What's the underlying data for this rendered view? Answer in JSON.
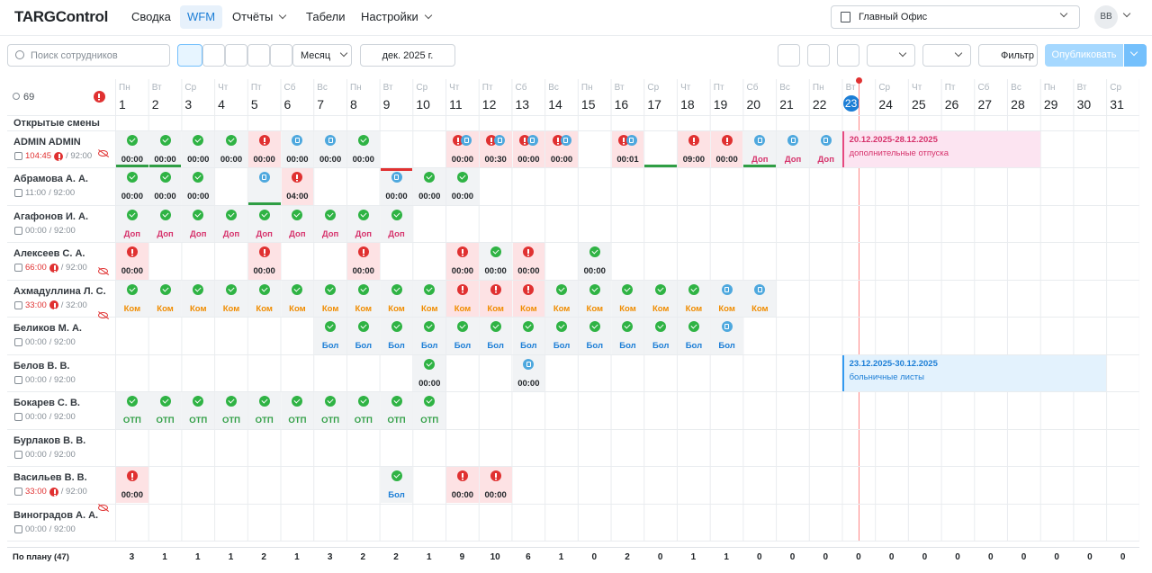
{
  "nav": {
    "logo": "TARGControl",
    "items": [
      "Сводка",
      "WFM",
      "Отчёты",
      "Табели",
      "Настройки"
    ],
    "active": 1,
    "dropdowns": [
      2,
      4
    ],
    "office": "Главный Офис",
    "avatar": "ВВ"
  },
  "toolbar": {
    "search": "Поиск сотрудников",
    "view": "Месяц",
    "period": "дек. 2025 г.",
    "filter": "Фильтр",
    "publish": "Опубликовать"
  },
  "grid": {
    "employee_count": "69",
    "open_shifts": "Открытые смены",
    "today": 23,
    "days": [
      1,
      2,
      3,
      4,
      5,
      6,
      7,
      8,
      9,
      10,
      11,
      12,
      13,
      14,
      15,
      16,
      17,
      18,
      19,
      20,
      21,
      22,
      23,
      24,
      25,
      26,
      27,
      28,
      29,
      30,
      31
    ],
    "weekdays": [
      "Пн",
      "Вт",
      "Ср",
      "Чт",
      "Пт",
      "Сб",
      "Вс",
      "Пн",
      "Вт",
      "Ср",
      "Чт",
      "Пт",
      "Сб",
      "Вс",
      "Пн",
      "Вт",
      "Ср",
      "Чт",
      "Пт",
      "Сб",
      "Вс",
      "Пн",
      "Вт",
      "Ср",
      "Чт",
      "Пт",
      "Сб",
      "Вс",
      "Пн",
      "Вт",
      "Ср"
    ],
    "employees": [
      {
        "name": "ADMIN ADMIN",
        "hours": "104:45",
        "plan": "/ 92:00",
        "over": true,
        "hidden": true,
        "cells": {
          "1": {
            "icon": "ok",
            "text": "00:00",
            "kind": "time",
            "bar": "green"
          },
          "2": {
            "icon": "ok",
            "text": "00:00",
            "kind": "time",
            "bar": "green"
          },
          "3": {
            "icon": "ok",
            "text": "00:00",
            "kind": "time"
          },
          "4": {
            "icon": "ok",
            "text": "00:00",
            "kind": "time"
          },
          "5": {
            "icon": "alert",
            "text": "00:00",
            "kind": "time"
          },
          "6": {
            "icon": "wait",
            "text": "00:00",
            "kind": "time"
          },
          "7": {
            "icon": "wait",
            "text": "00:00",
            "kind": "time"
          },
          "8": {
            "icon": "ok",
            "text": "00:00",
            "kind": "time"
          },
          "11": {
            "icon": "alert-wait",
            "text": "00:00",
            "kind": "time"
          },
          "12": {
            "icon": "alert-wait",
            "text": "00:30",
            "kind": "time"
          },
          "13": {
            "icon": "alert-wait",
            "text": "00:00",
            "kind": "time"
          },
          "14": {
            "icon": "alert-wait",
            "text": "00:00",
            "kind": "time"
          },
          "16": {
            "icon": "alert-wait",
            "text": "00:01",
            "kind": "time"
          },
          "17": {
            "bar": "green"
          },
          "18": {
            "icon": "alert",
            "text": "09:00",
            "kind": "time"
          },
          "19": {
            "icon": "alert",
            "text": "00:00",
            "kind": "time"
          },
          "20": {
            "icon": "wait",
            "text": "Доп",
            "kind": "dop",
            "bar": "green"
          },
          "21": {
            "icon": "wait",
            "text": "Доп",
            "kind": "dop"
          },
          "22": {
            "icon": "wait",
            "text": "Доп",
            "kind": "dop"
          }
        },
        "period": {
          "from": 23,
          "to": 28,
          "title": "20.12.2025-28.12.2025",
          "subtitle": "дополнительные отпуска",
          "tone": "pink"
        }
      },
      {
        "name": "Абрамова А. А.",
        "hours": "11:00",
        "plan": "/ 92:00",
        "over": false,
        "hidden": false,
        "cells": {
          "1": {
            "icon": "ok",
            "text": "00:00",
            "kind": "time"
          },
          "2": {
            "icon": "ok",
            "text": "00:00",
            "kind": "time"
          },
          "3": {
            "icon": "ok",
            "text": "00:00",
            "kind": "time"
          },
          "5": {
            "icon": "wait",
            "bar": "green"
          },
          "6": {
            "icon": "alert",
            "text": "04:00",
            "kind": "time"
          },
          "9": {
            "icon": "wait",
            "text": "00:00",
            "kind": "time",
            "bar": "red"
          },
          "10": {
            "icon": "ok",
            "text": "00:00",
            "kind": "time"
          },
          "11": {
            "icon": "ok",
            "text": "00:00",
            "kind": "time"
          }
        }
      },
      {
        "name": "Агафонов И. А.",
        "hours": "00:00",
        "plan": "/ 92:00",
        "over": false,
        "hidden": false,
        "cells": {
          "1": {
            "icon": "ok",
            "text": "Доп",
            "kind": "dop"
          },
          "2": {
            "icon": "ok",
            "text": "Доп",
            "kind": "dop"
          },
          "3": {
            "icon": "ok",
            "text": "Доп",
            "kind": "dop"
          },
          "4": {
            "icon": "ok",
            "text": "Доп",
            "kind": "dop"
          },
          "5": {
            "icon": "ok",
            "text": "Доп",
            "kind": "dop"
          },
          "6": {
            "icon": "ok",
            "text": "Доп",
            "kind": "dop"
          },
          "7": {
            "icon": "ok",
            "text": "Доп",
            "kind": "dop"
          },
          "8": {
            "icon": "ok",
            "text": "Доп",
            "kind": "dop"
          },
          "9": {
            "icon": "ok",
            "text": "Доп",
            "kind": "dop"
          }
        }
      },
      {
        "name": "Алексеев С. А.",
        "hours": "66:00",
        "plan": "/ 92:00",
        "over": true,
        "hidden": true,
        "cells": {
          "1": {
            "icon": "alert",
            "text": "00:00",
            "kind": "time"
          },
          "5": {
            "icon": "alert",
            "text": "00:00",
            "kind": "time"
          },
          "8": {
            "icon": "alert",
            "text": "00:00",
            "kind": "time"
          },
          "11": {
            "icon": "alert",
            "text": "00:00",
            "kind": "time"
          },
          "12": {
            "icon": "ok",
            "text": "00:00",
            "kind": "time"
          },
          "13": {
            "icon": "alert",
            "text": "00:00",
            "kind": "time"
          },
          "15": {
            "icon": "ok",
            "text": "00:00",
            "kind": "time"
          }
        }
      },
      {
        "name": "Ахмадуллина Л. С.",
        "hours": "33:00",
        "plan": "/ 32:00",
        "over": true,
        "hidden": true,
        "cells": {
          "1": {
            "icon": "ok",
            "text": "Ком",
            "kind": "kom"
          },
          "2": {
            "icon": "ok",
            "text": "Ком",
            "kind": "kom"
          },
          "3": {
            "icon": "ok",
            "text": "Ком",
            "kind": "kom"
          },
          "4": {
            "icon": "ok",
            "text": "Ком",
            "kind": "kom"
          },
          "5": {
            "icon": "ok",
            "text": "Ком",
            "kind": "kom"
          },
          "6": {
            "icon": "ok",
            "text": "Ком",
            "kind": "kom"
          },
          "7": {
            "icon": "ok",
            "text": "Ком",
            "kind": "kom"
          },
          "8": {
            "icon": "ok",
            "text": "Ком",
            "kind": "kom"
          },
          "9": {
            "icon": "ok",
            "text": "Ком",
            "kind": "kom"
          },
          "10": {
            "icon": "ok",
            "text": "Ком",
            "kind": "kom"
          },
          "11": {
            "icon": "alert",
            "text": "Ком",
            "kind": "kom"
          },
          "12": {
            "icon": "alert",
            "text": "Ком",
            "kind": "kom"
          },
          "13": {
            "icon": "alert",
            "text": "Ком",
            "kind": "kom"
          },
          "14": {
            "icon": "ok",
            "text": "Ком",
            "kind": "kom"
          },
          "15": {
            "icon": "ok",
            "text": "Ком",
            "kind": "kom"
          },
          "16": {
            "icon": "ok",
            "text": "Ком",
            "kind": "kom"
          },
          "17": {
            "icon": "ok",
            "text": "Ком",
            "kind": "kom"
          },
          "18": {
            "icon": "ok",
            "text": "Ком",
            "kind": "kom"
          },
          "19": {
            "icon": "wait",
            "text": "Ком",
            "kind": "kom"
          },
          "20": {
            "icon": "wait",
            "text": "Ком",
            "kind": "kom"
          }
        }
      },
      {
        "name": "Беликов М. А.",
        "hours": "00:00",
        "plan": "/ 92:00",
        "over": false,
        "hidden": false,
        "cells": {
          "7": {
            "icon": "ok",
            "text": "Бол",
            "kind": "bol"
          },
          "8": {
            "icon": "ok",
            "text": "Бол",
            "kind": "bol"
          },
          "9": {
            "icon": "ok",
            "text": "Бол",
            "kind": "bol"
          },
          "10": {
            "icon": "ok",
            "text": "Бол",
            "kind": "bol"
          },
          "11": {
            "icon": "ok",
            "text": "Бол",
            "kind": "bol"
          },
          "12": {
            "icon": "ok",
            "text": "Бол",
            "kind": "bol"
          },
          "13": {
            "icon": "ok",
            "text": "Бол",
            "kind": "bol"
          },
          "14": {
            "icon": "ok",
            "text": "Бол",
            "kind": "bol"
          },
          "15": {
            "icon": "ok",
            "text": "Бол",
            "kind": "bol"
          },
          "16": {
            "icon": "ok",
            "text": "Бол",
            "kind": "bol"
          },
          "17": {
            "icon": "ok",
            "text": "Бол",
            "kind": "bol"
          },
          "18": {
            "icon": "ok",
            "text": "Бол",
            "kind": "bol"
          },
          "19": {
            "icon": "wait",
            "text": "Бол",
            "kind": "bol"
          }
        }
      },
      {
        "name": "Белов В. В.",
        "hours": "00:00",
        "plan": "/ 92:00",
        "over": false,
        "hidden": false,
        "cells": {
          "10": {
            "icon": "ok",
            "text": "00:00",
            "kind": "time"
          },
          "13": {
            "icon": "wait",
            "text": "00:00",
            "kind": "time"
          }
        },
        "period": {
          "from": 23,
          "to": 30,
          "title": "23.12.2025-30.12.2025",
          "subtitle": "больничные листы",
          "tone": "blue"
        }
      },
      {
        "name": "Бокарев С. В.",
        "hours": "00:00",
        "plan": "/ 92:00",
        "over": false,
        "hidden": false,
        "cells": {
          "1": {
            "icon": "ok",
            "text": "ОТП",
            "kind": "otp"
          },
          "2": {
            "icon": "ok",
            "text": "ОТП",
            "kind": "otp"
          },
          "3": {
            "icon": "ok",
            "text": "ОТП",
            "kind": "otp"
          },
          "4": {
            "icon": "ok",
            "text": "ОТП",
            "kind": "otp"
          },
          "5": {
            "icon": "ok",
            "text": "ОТП",
            "kind": "otp"
          },
          "6": {
            "icon": "ok",
            "text": "ОТП",
            "kind": "otp"
          },
          "7": {
            "icon": "ok",
            "text": "ОТП",
            "kind": "otp"
          },
          "8": {
            "icon": "ok",
            "text": "ОТП",
            "kind": "otp"
          },
          "9": {
            "icon": "ok",
            "text": "ОТП",
            "kind": "otp"
          },
          "10": {
            "icon": "ok",
            "text": "ОТП",
            "kind": "otp"
          }
        }
      },
      {
        "name": "Бурлаков В. В.",
        "hours": "00:00",
        "plan": "/ 92:00",
        "over": false,
        "hidden": false,
        "cells": {}
      },
      {
        "name": "Васильев В. В.",
        "hours": "33:00",
        "plan": "/ 92:00",
        "over": true,
        "hidden": true,
        "cells": {
          "1": {
            "icon": "alert",
            "text": "00:00",
            "kind": "time"
          },
          "9": {
            "icon": "ok",
            "text": "Бол",
            "kind": "bol"
          },
          "11": {
            "icon": "alert",
            "text": "00:00",
            "kind": "time"
          },
          "12": {
            "icon": "alert",
            "text": "00:00",
            "kind": "time"
          }
        }
      },
      {
        "name": "Виноградов А. А.",
        "hours": "00:00",
        "plan": "/ 92:00",
        "over": false,
        "hidden": false,
        "cells": {}
      }
    ],
    "footer": {
      "label": "По плану (47)",
      "counts": [
        3,
        1,
        1,
        1,
        2,
        1,
        3,
        2,
        2,
        1,
        9,
        10,
        6,
        1,
        0,
        2,
        0,
        1,
        1,
        0,
        0,
        0,
        0,
        0,
        0,
        0,
        0,
        0,
        0,
        0,
        0
      ]
    }
  }
}
